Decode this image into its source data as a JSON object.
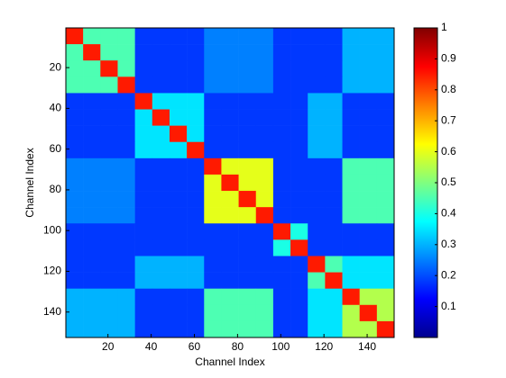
{
  "chart_data": {
    "type": "heatmap",
    "xlabel": "Channel Index",
    "ylabel": "Channel Index",
    "x": [
      4.5,
      12.5,
      20.5,
      28.5,
      36.5,
      44.5,
      52.5,
      60.5,
      68.5,
      76.5,
      84.5,
      92.5,
      100.5,
      108.5,
      116.5,
      124.5,
      132.5,
      140.5,
      148.5
    ],
    "y": [
      4.5,
      12.5,
      20.5,
      28.5,
      36.5,
      44.5,
      52.5,
      60.5,
      68.5,
      76.5,
      84.5,
      92.5,
      100.5,
      108.5,
      116.5,
      124.5,
      132.5,
      140.5,
      148.5
    ],
    "z": [
      [
        0.85,
        0.45,
        0.45,
        0.45,
        0.18,
        0.18,
        0.18,
        0.18,
        0.25,
        0.25,
        0.25,
        0.25,
        0.18,
        0.18,
        0.18,
        0.18,
        0.3,
        0.3,
        0.3
      ],
      [
        0.45,
        0.85,
        0.45,
        0.45,
        0.18,
        0.18,
        0.18,
        0.18,
        0.25,
        0.25,
        0.25,
        0.25,
        0.18,
        0.18,
        0.18,
        0.18,
        0.3,
        0.3,
        0.3
      ],
      [
        0.45,
        0.45,
        0.85,
        0.45,
        0.18,
        0.18,
        0.18,
        0.18,
        0.25,
        0.25,
        0.25,
        0.25,
        0.18,
        0.18,
        0.18,
        0.18,
        0.3,
        0.3,
        0.3
      ],
      [
        0.45,
        0.45,
        0.45,
        0.85,
        0.18,
        0.18,
        0.18,
        0.18,
        0.25,
        0.25,
        0.25,
        0.25,
        0.18,
        0.18,
        0.18,
        0.18,
        0.3,
        0.3,
        0.3
      ],
      [
        0.18,
        0.18,
        0.18,
        0.18,
        0.85,
        0.35,
        0.35,
        0.35,
        0.18,
        0.18,
        0.18,
        0.18,
        0.18,
        0.18,
        0.3,
        0.3,
        0.18,
        0.18,
        0.18
      ],
      [
        0.18,
        0.18,
        0.18,
        0.18,
        0.35,
        0.85,
        0.35,
        0.35,
        0.18,
        0.18,
        0.18,
        0.18,
        0.18,
        0.18,
        0.3,
        0.3,
        0.18,
        0.18,
        0.18
      ],
      [
        0.18,
        0.18,
        0.18,
        0.18,
        0.35,
        0.35,
        0.85,
        0.35,
        0.18,
        0.18,
        0.18,
        0.18,
        0.18,
        0.18,
        0.3,
        0.3,
        0.18,
        0.18,
        0.18
      ],
      [
        0.18,
        0.18,
        0.18,
        0.18,
        0.35,
        0.35,
        0.35,
        0.85,
        0.18,
        0.18,
        0.18,
        0.18,
        0.18,
        0.18,
        0.3,
        0.3,
        0.18,
        0.18,
        0.18
      ],
      [
        0.25,
        0.25,
        0.25,
        0.25,
        0.18,
        0.18,
        0.18,
        0.18,
        0.85,
        0.6,
        0.6,
        0.6,
        0.18,
        0.18,
        0.18,
        0.18,
        0.45,
        0.45,
        0.45
      ],
      [
        0.25,
        0.25,
        0.25,
        0.25,
        0.18,
        0.18,
        0.18,
        0.18,
        0.6,
        0.85,
        0.6,
        0.6,
        0.18,
        0.18,
        0.18,
        0.18,
        0.45,
        0.45,
        0.45
      ],
      [
        0.25,
        0.25,
        0.25,
        0.25,
        0.18,
        0.18,
        0.18,
        0.18,
        0.6,
        0.6,
        0.85,
        0.6,
        0.18,
        0.18,
        0.18,
        0.18,
        0.45,
        0.45,
        0.45
      ],
      [
        0.25,
        0.25,
        0.25,
        0.25,
        0.18,
        0.18,
        0.18,
        0.18,
        0.6,
        0.6,
        0.6,
        0.85,
        0.18,
        0.18,
        0.18,
        0.18,
        0.45,
        0.45,
        0.45
      ],
      [
        0.18,
        0.18,
        0.18,
        0.18,
        0.18,
        0.18,
        0.18,
        0.18,
        0.18,
        0.18,
        0.18,
        0.18,
        0.85,
        0.4,
        0.18,
        0.18,
        0.18,
        0.18,
        0.18
      ],
      [
        0.18,
        0.18,
        0.18,
        0.18,
        0.18,
        0.18,
        0.18,
        0.18,
        0.18,
        0.18,
        0.18,
        0.18,
        0.4,
        0.85,
        0.18,
        0.18,
        0.18,
        0.18,
        0.18
      ],
      [
        0.18,
        0.18,
        0.18,
        0.18,
        0.3,
        0.3,
        0.3,
        0.3,
        0.18,
        0.18,
        0.18,
        0.18,
        0.18,
        0.18,
        0.85,
        0.45,
        0.35,
        0.35,
        0.35
      ],
      [
        0.18,
        0.18,
        0.18,
        0.18,
        0.3,
        0.3,
        0.3,
        0.3,
        0.18,
        0.18,
        0.18,
        0.18,
        0.18,
        0.18,
        0.45,
        0.85,
        0.35,
        0.35,
        0.35
      ],
      [
        0.3,
        0.3,
        0.3,
        0.3,
        0.18,
        0.18,
        0.18,
        0.18,
        0.45,
        0.45,
        0.45,
        0.45,
        0.18,
        0.18,
        0.35,
        0.35,
        0.85,
        0.55,
        0.55
      ],
      [
        0.3,
        0.3,
        0.3,
        0.3,
        0.18,
        0.18,
        0.18,
        0.18,
        0.45,
        0.45,
        0.45,
        0.45,
        0.18,
        0.18,
        0.35,
        0.35,
        0.55,
        0.85,
        0.55
      ],
      [
        0.3,
        0.3,
        0.3,
        0.3,
        0.18,
        0.18,
        0.18,
        0.18,
        0.45,
        0.45,
        0.45,
        0.45,
        0.18,
        0.18,
        0.35,
        0.35,
        0.55,
        0.55,
        0.85
      ]
    ],
    "xlim": [
      0.5,
      152.5
    ],
    "ylim": [
      0.5,
      152.5
    ],
    "xticks": [
      20,
      40,
      60,
      80,
      100,
      120,
      140
    ],
    "yticks": [
      20,
      40,
      60,
      80,
      100,
      120,
      140
    ],
    "zlim": [
      0,
      1
    ],
    "zticks": [
      0.1,
      0.2,
      0.3,
      0.4,
      0.5,
      0.6,
      0.7,
      0.8,
      0.9,
      1
    ],
    "colormap": "jet"
  }
}
